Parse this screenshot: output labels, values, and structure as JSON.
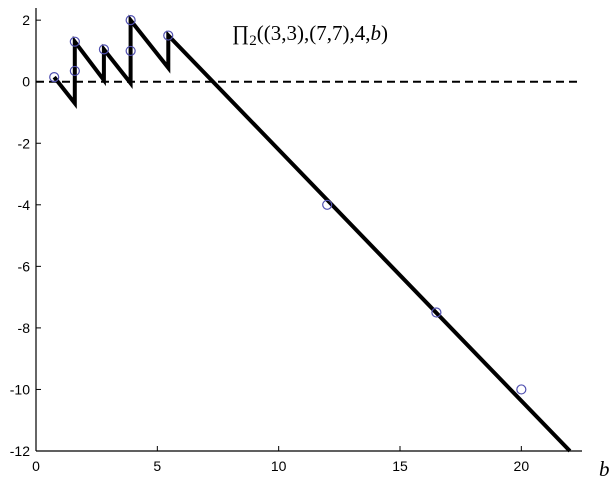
{
  "chart_data": {
    "type": "line",
    "title": "∏2((3,3),(7,7),4,b)",
    "title_parts": {
      "prefix": "∏",
      "sub": "2",
      "args": "((3,3),(7,7),4,",
      "var": "b",
      "close": ")"
    },
    "xlabel": "b",
    "ylabel": "",
    "xlim": [
      0,
      22.5
    ],
    "ylim": [
      -12,
      2.2
    ],
    "xticks": [
      0,
      5,
      10,
      15,
      20
    ],
    "yticks": [
      2,
      0,
      -2,
      -4,
      -6,
      -8,
      -10,
      -12
    ],
    "grid": false,
    "legend": "none",
    "reference_line": {
      "y": 0,
      "style": "dashed",
      "color": "#000000"
    },
    "series": [
      {
        "color": "#000000",
        "points": [
          [
            0.75,
            0.15
          ],
          [
            1.6,
            -0.7
          ],
          [
            1.6,
            1.3
          ],
          [
            2.8,
            0.05
          ],
          [
            2.8,
            1.05
          ],
          [
            3.9,
            -0.05
          ],
          [
            3.9,
            2.0
          ],
          [
            5.45,
            0.45
          ],
          [
            5.45,
            1.5
          ],
          [
            22.0,
            -12.0
          ]
        ]
      }
    ],
    "markers": {
      "color": "#5050b0",
      "points": [
        [
          0.75,
          0.15
        ],
        [
          1.6,
          0.35
        ],
        [
          1.6,
          1.3
        ],
        [
          2.8,
          1.05
        ],
        [
          3.9,
          1.0
        ],
        [
          3.9,
          2.0
        ],
        [
          5.45,
          1.5
        ],
        [
          12,
          -4.0
        ],
        [
          16.5,
          -7.5
        ],
        [
          20,
          -10.0
        ]
      ]
    }
  }
}
